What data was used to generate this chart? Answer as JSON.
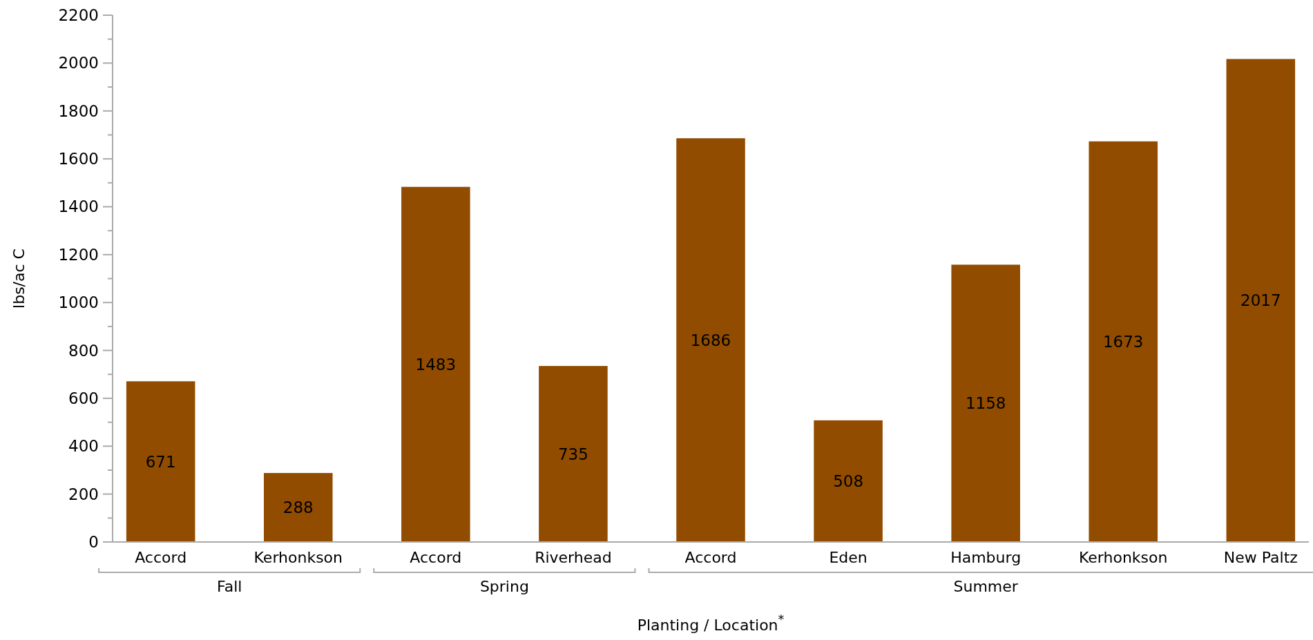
{
  "chart_data": {
    "type": "bar",
    "xlabel": "Planting / Location$^{*}$",
    "ylabel": "lbs/ac C",
    "categories": [
      "Accord",
      "Kerhonkson",
      "Accord",
      "Riverhead",
      "Accord",
      "Eden",
      "Hamburg",
      "Kerhonkson",
      "New Paltz"
    ],
    "values": [
      671,
      288,
      1483,
      735,
      1686,
      508,
      1158,
      1673,
      2017
    ],
    "color": "#924c00",
    "data_labels": true,
    "grid": false,
    "ylim": [
      0,
      2200
    ],
    "yticks": [
      0,
      {
        "value": 100,
        "label": null
      },
      200,
      {
        "value": 300,
        "label": null
      },
      400,
      {
        "value": 500,
        "label": null
      },
      600,
      {
        "value": 700,
        "label": null
      },
      800,
      {
        "value": 900,
        "label": null
      },
      1000,
      {
        "value": 1100,
        "label": null
      },
      1200,
      {
        "value": 1300,
        "label": null
      },
      1400,
      {
        "value": 1500,
        "label": null
      },
      1600,
      {
        "value": 1700,
        "label": null
      },
      1800,
      {
        "value": 1900,
        "label": null
      },
      2000,
      {
        "value": 2100,
        "label": null
      },
      2200
    ],
    "annotations": [
      "Fall",
      "Spring",
      "Summer"
    ]
  }
}
